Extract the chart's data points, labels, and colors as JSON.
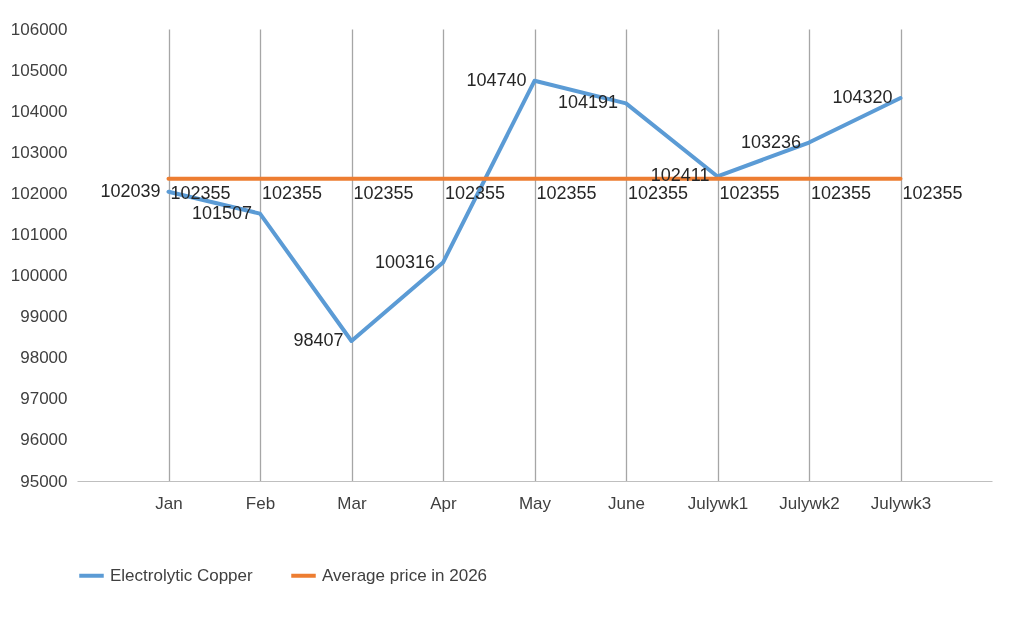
{
  "chart_data": {
    "type": "line",
    "categories": [
      "Jan",
      "Feb",
      "Mar",
      "Apr",
      "May",
      "June",
      "Julywk1",
      "Julywk2",
      "Julywk3"
    ],
    "series": [
      {
        "name": "Electrolytic Copper",
        "color": "#5b9bd5",
        "values": [
          102039,
          101507,
          98407,
          100316,
          104740,
          104191,
          102411,
          103236,
          104320
        ]
      },
      {
        "name": "Average price in 2026",
        "color": "#ed7d31",
        "values": [
          102355,
          102355,
          102355,
          102355,
          102355,
          102355,
          102355,
          102355,
          102355
        ]
      }
    ],
    "ylim": [
      95000,
      106000
    ],
    "yticks": [
      95000,
      96000,
      97000,
      98000,
      99000,
      100000,
      101000,
      102000,
      103000,
      104000,
      105000,
      106000
    ],
    "grid": "x",
    "legend": "bottom",
    "data_labels": true,
    "marker": "none",
    "line_style": "solid"
  }
}
